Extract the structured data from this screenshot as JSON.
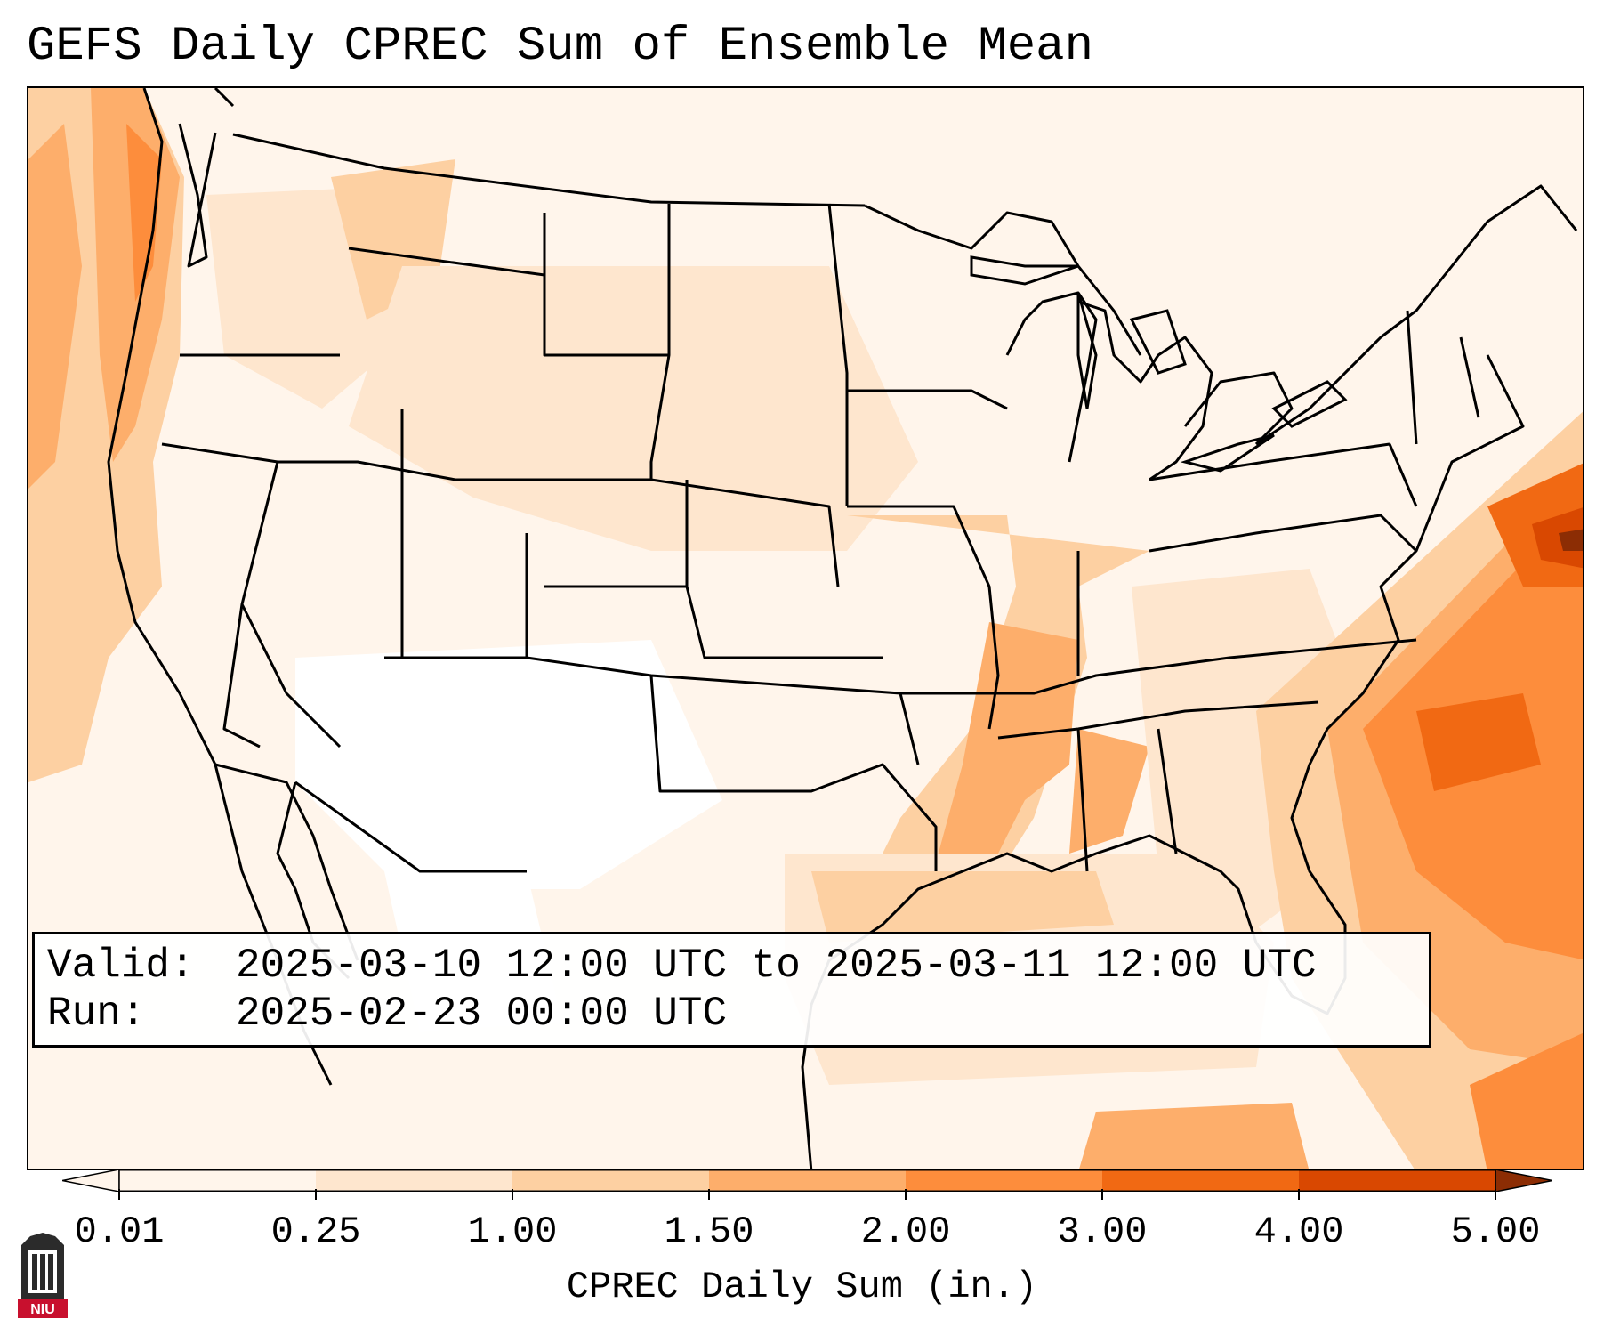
{
  "title": "GEFS Daily CPREC Sum of Ensemble Mean",
  "info": {
    "valid_label": "Valid:",
    "valid_value": "2025-03-10 12:00 UTC to 2025-03-11 12:00 UTC",
    "run_label": "Run:",
    "run_value": "2025-02-23 00:00 UTC"
  },
  "colorbar": {
    "label": "CPREC Daily Sum (in.)",
    "ticks": [
      "0.01",
      "0.25",
      "1.00",
      "1.50",
      "2.00",
      "3.00",
      "4.00",
      "5.00"
    ],
    "colors": [
      "#fff5eb",
      "#fee6ce",
      "#fdd0a2",
      "#fdae6b",
      "#fd8d3c",
      "#f16913",
      "#d94801",
      "#8c2d04"
    ]
  },
  "logo": {
    "text": "NIU",
    "colors": {
      "tower": "#2b2b2b",
      "band": "#c8102e"
    }
  }
}
